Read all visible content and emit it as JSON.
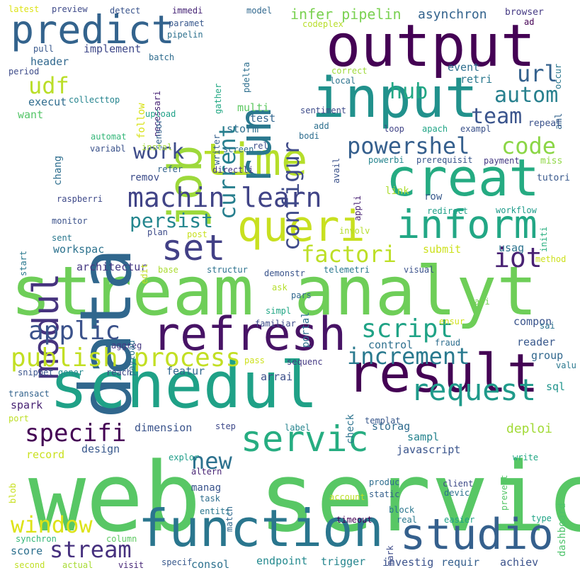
{
  "words": [
    {
      "text": "web servic",
      "color": "#58c765"
    },
    {
      "text": "stream analyt",
      "color": "#6ece58"
    },
    {
      "text": "data",
      "color": "#30678d"
    },
    {
      "text": "schedul",
      "color": "#1fa187"
    },
    {
      "text": "output",
      "color": "#440154"
    },
    {
      "text": "input",
      "color": "#21918c"
    },
    {
      "text": "creat",
      "color": "#25ab82"
    },
    {
      "text": "result",
      "color": "#440154"
    },
    {
      "text": "refresh",
      "color": "#471365"
    },
    {
      "text": "function",
      "color": "#2a768e"
    },
    {
      "text": "studio",
      "color": "#35608d"
    },
    {
      "text": "time",
      "color": "#b5de2b"
    },
    {
      "text": "queri",
      "color": "#c8e020"
    },
    {
      "text": "inform",
      "color": "#22a785"
    },
    {
      "text": "job",
      "color": "#9dd93b"
    },
    {
      "text": "run",
      "color": "#2a788e"
    },
    {
      "text": "predict",
      "color": "#33638d"
    },
    {
      "text": "modul",
      "color": "#46337e"
    },
    {
      "text": "set",
      "color": "#424086"
    },
    {
      "text": "request",
      "color": "#1f9a8a"
    },
    {
      "text": "servic",
      "color": "#26ad81"
    },
    {
      "text": "machin learn",
      "color": "#414487"
    },
    {
      "text": "applic",
      "color": "#3b528b"
    },
    {
      "text": "script",
      "color": "#20a386"
    },
    {
      "text": "publish process",
      "color": "#c2df23"
    },
    {
      "text": "increment",
      "color": "#29798e"
    },
    {
      "text": "powershel",
      "color": "#355f8d"
    },
    {
      "text": "specifi",
      "color": "#440154"
    },
    {
      "text": "window",
      "color": "#dde318"
    },
    {
      "text": "stream",
      "color": "#46307e"
    },
    {
      "text": "code",
      "color": "#8bd646"
    },
    {
      "text": "factori",
      "color": "#bddf26"
    },
    {
      "text": "configur",
      "color": "#3e4a89"
    },
    {
      "text": "current",
      "color": "#277f8e"
    },
    {
      "text": "autom",
      "color": "#27808e"
    },
    {
      "text": "team",
      "color": "#3a548c"
    },
    {
      "text": "work",
      "color": "#3e4c8a"
    },
    {
      "text": "persist",
      "color": "#24868e"
    },
    {
      "text": "udf",
      "color": "#bade28"
    },
    {
      "text": "hub",
      "color": "#22a884"
    },
    {
      "text": "url",
      "color": "#34618d"
    },
    {
      "text": "iot",
      "color": "#482173"
    },
    {
      "text": "new",
      "color": "#2c718e"
    },
    {
      "text": "infer pipelin",
      "color": "#7ad151"
    },
    {
      "text": "asynchron",
      "color": "#33638d"
    },
    {
      "text": "implement",
      "color": "#3f4889"
    },
    {
      "text": "header",
      "color": "#31688e"
    },
    {
      "text": "execut",
      "color": "#2f6c8e"
    },
    {
      "text": "collecttop",
      "color": "#25848e"
    },
    {
      "text": "want",
      "color": "#54c568"
    },
    {
      "text": "multi",
      "color": "#5ec962"
    },
    {
      "text": "test",
      "color": "#32658e"
    },
    {
      "text": "storm",
      "color": "#2e6f8e"
    },
    {
      "text": "chang",
      "color": "#2e6e8e"
    },
    {
      "text": "remov",
      "color": "#3d4d8a"
    },
    {
      "text": "workspac",
      "color": "#2c728e"
    },
    {
      "text": "architectur",
      "color": "#453882"
    },
    {
      "text": "dimension",
      "color": "#3a538b"
    },
    {
      "text": "design",
      "color": "#38588c"
    },
    {
      "text": "record",
      "color": "#cae11f"
    },
    {
      "text": "spark",
      "color": "#482374"
    },
    {
      "text": "featur",
      "color": "#31668e"
    },
    {
      "text": "score",
      "color": "#2d708e"
    },
    {
      "text": "consol",
      "color": "#2d718e"
    },
    {
      "text": "endpoint",
      "color": "#23898e"
    },
    {
      "text": "trigger",
      "color": "#25858e"
    },
    {
      "text": "investig",
      "color": "#3b528b"
    },
    {
      "text": "requir",
      "color": "#355f8d"
    },
    {
      "text": "achiev",
      "color": "#3b528b"
    },
    {
      "text": "control",
      "color": "#2d708e"
    },
    {
      "text": "arrai",
      "color": "#3c4f8a"
    },
    {
      "text": "storag",
      "color": "#2f6b8e"
    },
    {
      "text": "sampl",
      "color": "#25838e"
    },
    {
      "text": "javascript",
      "color": "#3a548c"
    },
    {
      "text": "deploi",
      "color": "#a2da37"
    },
    {
      "text": "dashboard",
      "color": "#4ec36b"
    },
    {
      "text": "compon",
      "color": "#3a548c"
    },
    {
      "text": "reader",
      "color": "#38588c"
    },
    {
      "text": "group",
      "color": "#31688e"
    },
    {
      "text": "sql",
      "color": "#1f948c"
    },
    {
      "text": "submit",
      "color": "#cde11d"
    },
    {
      "text": "usag",
      "color": "#2c738e"
    },
    {
      "text": "event",
      "color": "#2e6f8e"
    },
    {
      "text": "retri",
      "color": "#2a788e"
    },
    {
      "text": "aml",
      "color": "#33638d"
    },
    {
      "text": "repeat",
      "color": "#3b528b"
    },
    {
      "text": "miss",
      "color": "#8fd744"
    },
    {
      "text": "tutori",
      "color": "#38588c"
    },
    {
      "text": "payment",
      "color": "#443983"
    },
    {
      "text": "prerequisit",
      "color": "#39568c"
    },
    {
      "text": "powerbi",
      "color": "#25848e"
    },
    {
      "text": "link",
      "color": "#addc30"
    },
    {
      "text": "row",
      "color": "#38598c"
    },
    {
      "text": "redirect",
      "color": "#1fa088"
    },
    {
      "text": "workflow",
      "color": "#1e9b8a"
    },
    {
      "text": "initi",
      "color": "#29af7f"
    },
    {
      "text": "method",
      "color": "#cde11d"
    },
    {
      "text": "visual",
      "color": "#3b528b"
    },
    {
      "text": "telemetri",
      "color": "#2a788e"
    },
    {
      "text": "portal",
      "color": "#2d708e"
    },
    {
      "text": "pars",
      "color": "#31688e"
    },
    {
      "text": "ask",
      "color": "#b5de2b"
    },
    {
      "text": "simpl",
      "color": "#21a685"
    },
    {
      "text": "familiar",
      "color": "#3e4c8a"
    },
    {
      "text": "api",
      "color": "#75d054"
    },
    {
      "text": "ensur",
      "color": "#d2e21b"
    },
    {
      "text": "sai",
      "color": "#2c728e"
    },
    {
      "text": "valu",
      "color": "#2a788e"
    },
    {
      "text": "fraud",
      "color": "#2e6e8e"
    },
    {
      "text": "sequenc",
      "color": "#443983"
    },
    {
      "text": "pass",
      "color": "#cde11d"
    },
    {
      "text": "check",
      "color": "#2c738e"
    },
    {
      "text": "templat",
      "color": "#38588c"
    },
    {
      "text": "label",
      "color": "#25848e"
    },
    {
      "text": "step",
      "color": "#3e4989"
    },
    {
      "text": "explor",
      "color": "#1f9e89"
    },
    {
      "text": "match",
      "color": "#31688e"
    },
    {
      "text": "altern",
      "color": "#482475"
    },
    {
      "text": "manag",
      "color": "#3a548c"
    },
    {
      "text": "task",
      "color": "#2e6e8e"
    },
    {
      "text": "entiti",
      "color": "#2a768e"
    },
    {
      "text": "produc",
      "color": "#2e6d8e"
    },
    {
      "text": "static",
      "color": "#35608d"
    },
    {
      "text": "client",
      "color": "#3e4a89"
    },
    {
      "text": "devic",
      "color": "#2d718e"
    },
    {
      "text": "write",
      "color": "#22a785"
    },
    {
      "text": "prevent",
      "color": "#54c568"
    },
    {
      "text": "account",
      "color": "#bddf26"
    },
    {
      "text": "block",
      "color": "#2a778e"
    },
    {
      "text": "timeout",
      "color": "#440154"
    },
    {
      "text": "mark",
      "color": "#3e4c8a"
    },
    {
      "text": "real",
      "color": "#2a788e"
    },
    {
      "text": "easier",
      "color": "#1fa287"
    },
    {
      "text": "type",
      "color": "#20a486"
    },
    {
      "text": "reach",
      "color": "#3e4a89"
    },
    {
      "text": "gener",
      "color": "#23898e"
    },
    {
      "text": "snippet",
      "color": "#3a548c"
    },
    {
      "text": "aggreg",
      "color": "#453781"
    },
    {
      "text": "payload",
      "color": "#2d708e"
    },
    {
      "text": "transact",
      "color": "#33638d"
    },
    {
      "text": "port",
      "color": "#bddf26"
    },
    {
      "text": "blob",
      "color": "#c8e020"
    },
    {
      "text": "synchron",
      "color": "#35b779"
    },
    {
      "text": "second",
      "color": "#c0df25"
    },
    {
      "text": "actual",
      "color": "#a8db34"
    },
    {
      "text": "visit",
      "color": "#482878"
    },
    {
      "text": "column",
      "color": "#5ec962"
    },
    {
      "text": "specif",
      "color": "#38598c"
    },
    {
      "text": "latest",
      "color": "#dde318"
    },
    {
      "text": "preview",
      "color": "#3e4a89"
    },
    {
      "text": "detect",
      "color": "#3a548c"
    },
    {
      "text": "immedi",
      "color": "#482677"
    },
    {
      "text": "model",
      "color": "#31688e"
    },
    {
      "text": "browser",
      "color": "#443983"
    },
    {
      "text": "ad",
      "color": "#440154"
    },
    {
      "text": "paramet",
      "color": "#38588c"
    },
    {
      "text": "pipelin",
      "color": "#2d708e"
    },
    {
      "text": "codeplex",
      "color": "#b8de29"
    },
    {
      "text": "pull",
      "color": "#38588c"
    },
    {
      "text": "batch",
      "color": "#2f6c8e"
    },
    {
      "text": "gather",
      "color": "#22a884"
    },
    {
      "text": "pdelta",
      "color": "#2e6f8e"
    },
    {
      "text": "occur",
      "color": "#2a778e"
    },
    {
      "text": "period",
      "color": "#3e4c8a"
    },
    {
      "text": "follow",
      "color": "#d8e219"
    },
    {
      "text": "necessari",
      "color": "#482475"
    },
    {
      "text": "sensor",
      "color": "#33638d"
    },
    {
      "text": "writer",
      "color": "#35608d"
    },
    {
      "text": "correct",
      "color": "#9fda3a"
    },
    {
      "text": "local",
      "color": "#2c738e"
    },
    {
      "text": "upload",
      "color": "#1fa188"
    },
    {
      "text": "sentiment",
      "color": "#3e4c8a"
    },
    {
      "text": "add",
      "color": "#2d708e"
    },
    {
      "text": "bodi",
      "color": "#2e6d8e"
    },
    {
      "text": "loop",
      "color": "#414487"
    },
    {
      "text": "apach",
      "color": "#20a486"
    },
    {
      "text": "exampl",
      "color": "#3b528b"
    },
    {
      "text": "automat",
      "color": "#35b779"
    },
    {
      "text": "instal",
      "color": "#a2da37"
    },
    {
      "text": "variabl",
      "color": "#3b528b"
    },
    {
      "text": "screen",
      "color": "#2f6c8e"
    },
    {
      "text": "rel",
      "color": "#3d4d8a"
    },
    {
      "text": "avail",
      "color": "#3b528b"
    },
    {
      "text": "refer",
      "color": "#33638d"
    },
    {
      "text": "directli",
      "color": "#453882"
    },
    {
      "text": "appli",
      "color": "#482173"
    },
    {
      "text": "start",
      "color": "#2a788e"
    },
    {
      "text": "raspberri",
      "color": "#3e4989"
    },
    {
      "text": "monitor",
      "color": "#3b528b"
    },
    {
      "text": "sent",
      "color": "#2a788e"
    },
    {
      "text": "plan",
      "color": "#3e4c8a"
    },
    {
      "text": "post",
      "color": "#c8e020"
    },
    {
      "text": "edit",
      "color": "#c2df23"
    },
    {
      "text": "base",
      "color": "#aadc32"
    },
    {
      "text": "structur",
      "color": "#2c728e"
    },
    {
      "text": "demonstr",
      "color": "#3a548c"
    },
    {
      "text": "involv",
      "color": "#b5de2b"
    },
    {
      "text": "arriv",
      "color": "#38588c"
    }
  ]
}
